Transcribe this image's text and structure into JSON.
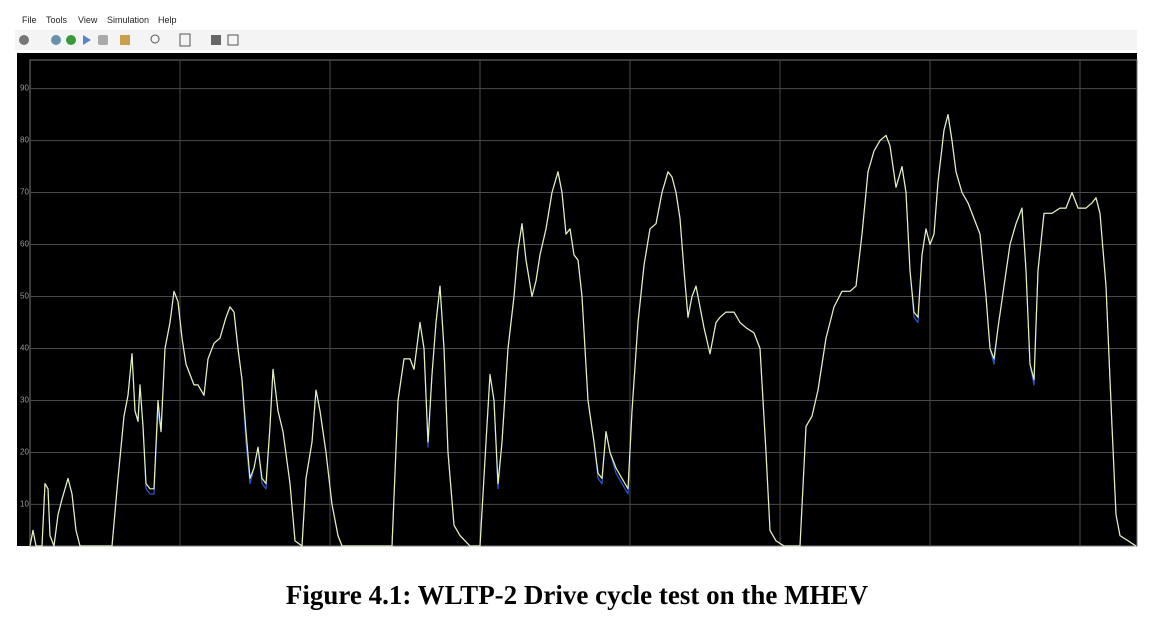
{
  "menu": [
    "File",
    "Tools",
    "View",
    "Simulation",
    "Help"
  ],
  "chart_data": {
    "type": "line",
    "x": [
      0,
      3,
      6,
      12,
      15,
      18,
      20,
      24,
      28,
      32,
      38,
      42,
      46,
      50,
      82,
      88,
      94,
      98,
      102,
      105,
      108,
      110,
      113,
      116,
      120,
      124,
      128,
      131,
      135,
      140,
      144,
      148,
      152,
      156,
      160,
      164,
      168,
      174,
      178,
      184,
      190,
      196,
      200,
      204,
      208,
      212,
      216,
      220,
      224,
      228,
      232,
      236,
      240,
      243,
      248,
      253,
      260,
      265,
      272,
      276,
      282,
      286,
      290,
      296,
      302,
      308,
      312,
      320,
      362,
      368,
      374,
      380,
      384,
      390,
      394,
      398,
      402,
      406,
      410,
      414,
      418,
      424,
      430,
      440,
      450,
      456,
      460,
      464,
      468,
      472,
      478,
      484,
      488,
      492,
      496,
      502,
      506,
      510,
      516,
      522,
      528,
      532,
      536,
      540,
      544,
      548,
      552,
      558,
      564,
      568,
      572,
      576,
      580,
      586,
      592,
      598,
      602,
      608,
      614,
      620,
      626,
      632,
      638,
      642,
      646,
      650,
      654,
      658,
      662,
      666,
      670,
      674,
      680,
      686,
      690,
      696,
      704,
      710,
      716,
      724,
      730,
      736,
      740,
      746,
      754,
      770,
      776,
      782,
      788,
      796,
      804,
      812,
      820,
      826,
      832,
      838,
      844,
      850,
      856,
      860,
      866,
      872,
      876,
      880,
      884,
      888,
      892,
      896,
      900,
      904,
      908,
      914,
      918,
      922,
      926,
      932,
      938,
      944,
      950,
      956,
      960,
      964,
      968,
      974,
      980,
      986,
      992,
      996,
      1000,
      1004,
      1008,
      1014,
      1022,
      1030,
      1036,
      1042,
      1048,
      1056,
      1062,
      1066,
      1070,
      1076,
      1082,
      1086,
      1090,
      1098,
      1106
    ],
    "series": [
      {
        "color": "#2f55d4",
        "values": [
          2,
          5,
          2,
          2,
          14,
          13,
          4,
          2,
          8,
          11,
          15,
          12,
          5,
          2,
          2,
          15,
          27,
          31,
          39,
          28,
          26,
          33,
          25,
          13,
          12,
          12,
          28,
          24,
          40,
          45,
          51,
          49,
          42,
          37,
          35,
          33,
          33,
          31,
          38,
          41,
          42,
          46,
          48,
          47,
          40,
          34,
          22,
          14,
          17,
          21,
          14,
          13,
          25,
          36,
          28,
          24,
          14,
          3,
          2,
          15,
          22,
          32,
          28,
          20,
          10,
          4,
          2,
          2,
          2,
          30,
          38,
          38,
          36,
          45,
          40,
          21,
          35,
          45,
          52,
          40,
          20,
          6,
          4,
          2,
          2,
          22,
          35,
          30,
          13,
          22,
          40,
          50,
          59,
          64,
          57,
          50,
          53,
          58,
          63,
          70,
          74,
          70,
          62,
          63,
          58,
          57,
          50,
          30,
          22,
          15,
          14,
          24,
          20,
          16,
          14,
          12,
          28,
          45,
          56,
          63,
          64,
          70,
          74,
          73,
          70,
          65,
          55,
          46,
          50,
          52,
          48,
          44,
          39,
          45,
          46,
          47,
          47,
          45,
          44,
          43,
          40,
          20,
          5,
          3,
          2,
          2,
          25,
          27,
          32,
          42,
          48,
          51,
          51,
          52,
          62,
          74,
          78,
          80,
          81,
          79,
          71,
          75,
          70,
          55,
          46,
          45,
          58,
          63,
          60,
          62,
          72,
          82,
          85,
          80,
          74,
          70,
          68,
          65,
          62,
          50,
          40,
          37,
          44,
          52,
          60,
          64,
          67,
          55,
          37,
          33,
          55,
          66,
          66,
          67,
          67,
          70,
          67,
          67,
          68,
          69,
          66,
          52,
          25,
          8,
          4,
          3,
          2
        ]
      },
      {
        "color": "#e6f2b4",
        "values": [
          2,
          5,
          2,
          2,
          14,
          13,
          4,
          2,
          8,
          11,
          15,
          12,
          5,
          2,
          2,
          15,
          27,
          31,
          39,
          28,
          26,
          33,
          25,
          14,
          13,
          13,
          30,
          24,
          40,
          45,
          51,
          49,
          42,
          37,
          35,
          33,
          33,
          31,
          38,
          41,
          42,
          46,
          48,
          47,
          40,
          34,
          24,
          15,
          17,
          21,
          15,
          14,
          25,
          36,
          28,
          24,
          14,
          3,
          2,
          15,
          22,
          32,
          28,
          20,
          10,
          4,
          2,
          2,
          2,
          30,
          38,
          38,
          36,
          45,
          40,
          22,
          35,
          45,
          52,
          40,
          20,
          6,
          4,
          2,
          2,
          22,
          35,
          30,
          14,
          22,
          40,
          50,
          59,
          64,
          57,
          50,
          53,
          58,
          63,
          70,
          74,
          70,
          62,
          63,
          58,
          57,
          50,
          30,
          22,
          16,
          15,
          24,
          20,
          17,
          15,
          13,
          28,
          45,
          56,
          63,
          64,
          70,
          74,
          73,
          70,
          65,
          55,
          46,
          50,
          52,
          48,
          44,
          39,
          45,
          46,
          47,
          47,
          45,
          44,
          43,
          40,
          20,
          5,
          3,
          2,
          2,
          25,
          27,
          32,
          42,
          48,
          51,
          51,
          52,
          62,
          74,
          78,
          80,
          81,
          79,
          71,
          75,
          70,
          55,
          47,
          46,
          58,
          63,
          60,
          62,
          72,
          82,
          85,
          80,
          74,
          70,
          68,
          65,
          62,
          50,
          40,
          38,
          44,
          52,
          60,
          64,
          67,
          55,
          37,
          34,
          55,
          66,
          66,
          67,
          67,
          70,
          67,
          67,
          68,
          69,
          66,
          52,
          25,
          8,
          4,
          3,
          2
        ]
      }
    ],
    "xlim": [
      0,
      1107
    ],
    "xticks": [
      150,
      300,
      450,
      600,
      750,
      900,
      1050
    ],
    "ylim": [
      2,
      95.5
    ],
    "yticks": [
      10,
      20,
      30,
      40,
      50,
      60,
      70,
      80,
      90
    ],
    "grid": true
  },
  "caption": "Figure 4.1: WLTP-2 Drive cycle test on the MHEV"
}
